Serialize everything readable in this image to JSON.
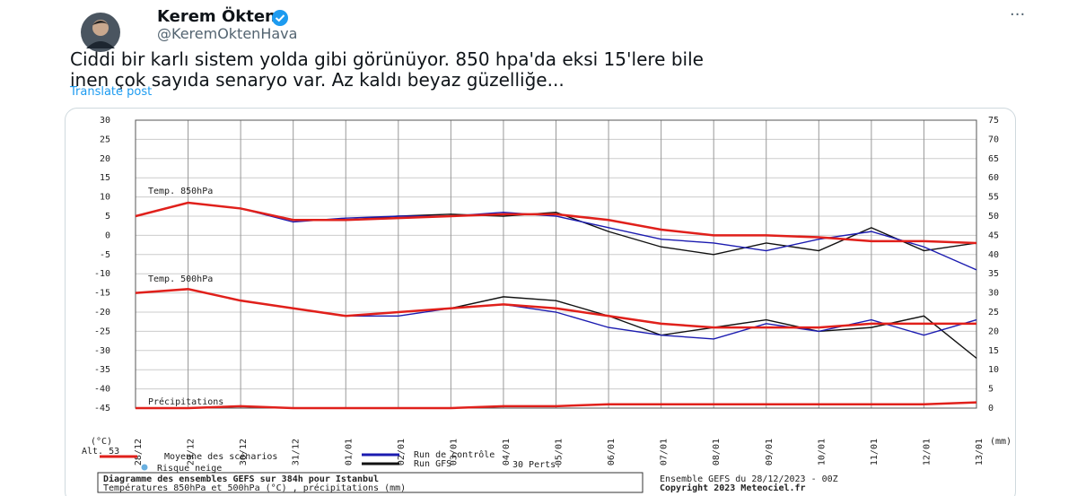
{
  "tweet": {
    "author": "Kerem Ökten",
    "handle": "@KeremOktenHava",
    "more": "···",
    "text_lines": [
      "Ciddi bir karlı sistem yolda gibi görünüyor. 850 hpa'da eksi 15'lere bile",
      "inen çok sayıda senaryo var. Az kaldı beyaz güzelliğe..."
    ],
    "translate": "Translate post"
  },
  "chart_data": {
    "type": "line",
    "annotations": [
      "Temp. 850hPa",
      "Temp. 500hPa",
      "Précipitations"
    ],
    "ylabel": "(°C)",
    "y2label": "(mm)",
    "altitude": "Alt. 53",
    "x": [
      0,
      24,
      48,
      72,
      96,
      120,
      144,
      168,
      192,
      216,
      240,
      264,
      288,
      312,
      336,
      360,
      384
    ],
    "xlim": [
      0,
      384
    ],
    "xticks": [
      {
        "value": 0,
        "label": "28/12"
      },
      {
        "value": 24,
        "label": "29/12"
      },
      {
        "value": 48,
        "label": "30/12"
      },
      {
        "value": 72,
        "label": "31/12"
      },
      {
        "value": 96,
        "label": "01/01"
      },
      {
        "value": 120,
        "label": "02/01"
      },
      {
        "value": 144,
        "label": "03/01"
      },
      {
        "value": 168,
        "label": "04/01"
      },
      {
        "value": 192,
        "label": "05/01"
      },
      {
        "value": 216,
        "label": "06/01"
      },
      {
        "value": 240,
        "label": "07/01"
      },
      {
        "value": 264,
        "label": "08/01"
      },
      {
        "value": 288,
        "label": "09/01"
      },
      {
        "value": 312,
        "label": "10/01"
      },
      {
        "value": 336,
        "label": "11/01"
      },
      {
        "value": 360,
        "label": "12/01"
      },
      {
        "value": 384,
        "label": "13/01"
      }
    ],
    "ylim": [
      -45,
      30
    ],
    "yticks": [
      -45,
      -40,
      -35,
      -30,
      -25,
      -20,
      -15,
      -10,
      -5,
      0,
      5,
      10,
      15,
      20,
      25,
      30
    ],
    "y2lim": [
      0,
      75
    ],
    "y2ticks": [
      0,
      5,
      10,
      15,
      20,
      25,
      30,
      35,
      40,
      45,
      50,
      55,
      60,
      65,
      70,
      75
    ],
    "grid": true,
    "series": [
      {
        "name": "Moyenne des scénarios",
        "color": "#e0201b",
        "values": [
          5,
          8.5,
          7,
          4,
          4,
          4.5,
          5,
          5.5,
          5.5,
          4,
          1.5,
          0,
          0,
          -0.5,
          -1.5,
          -1.5,
          -2
        ],
        "values_500": [
          -15,
          -14,
          -17,
          -19,
          -21,
          -20,
          -19,
          -18,
          -19,
          -21,
          -23,
          -24,
          -24,
          -24,
          -23,
          -23,
          -23
        ]
      },
      {
        "name": "Run de contrôle",
        "color": "#1b1bb0",
        "values": [
          5,
          8.5,
          7,
          3.5,
          4.5,
          5,
          5,
          6,
          5,
          2,
          -1,
          -2,
          -4,
          -1,
          1,
          -3,
          -9
        ],
        "values_500": [
          -15,
          -14,
          -17,
          -19,
          -21,
          -21,
          -19,
          -18,
          -20,
          -24,
          -26,
          -27,
          -23,
          -25,
          -22,
          -26,
          -22
        ]
      },
      {
        "name": "Run GFS",
        "color": "#111111",
        "values": [
          5,
          8.5,
          7,
          4,
          4,
          5,
          5.5,
          5,
          6,
          1,
          -3,
          -5,
          -2,
          -4,
          2,
          -4,
          -2
        ],
        "values_500": [
          -15,
          -14,
          -17,
          -19,
          -21,
          -20,
          -19,
          -16,
          -17,
          -21,
          -26,
          -24,
          -22,
          -25,
          -24,
          -21,
          -32
        ]
      }
    ],
    "precipitation": {
      "axis": "y2",
      "color": "#e0201b",
      "values": [
        0,
        0,
        0.5,
        0,
        0,
        0,
        0,
        0.5,
        0.5,
        1,
        1,
        1,
        1,
        1,
        1,
        1,
        1.5
      ]
    },
    "legend_extra": [
      "Risque neige",
      "30 Perts."
    ],
    "footer_left": [
      "Diagramme des ensembles GEFS sur 384h pour Istanbul",
      "Températures 850hPa et 500hPa (°C) , précipitations (mm)"
    ],
    "footer_right": [
      "Ensemble GEFS du 28/12/2023 - 00Z",
      "Copyright 2023 Meteociel.fr"
    ]
  }
}
